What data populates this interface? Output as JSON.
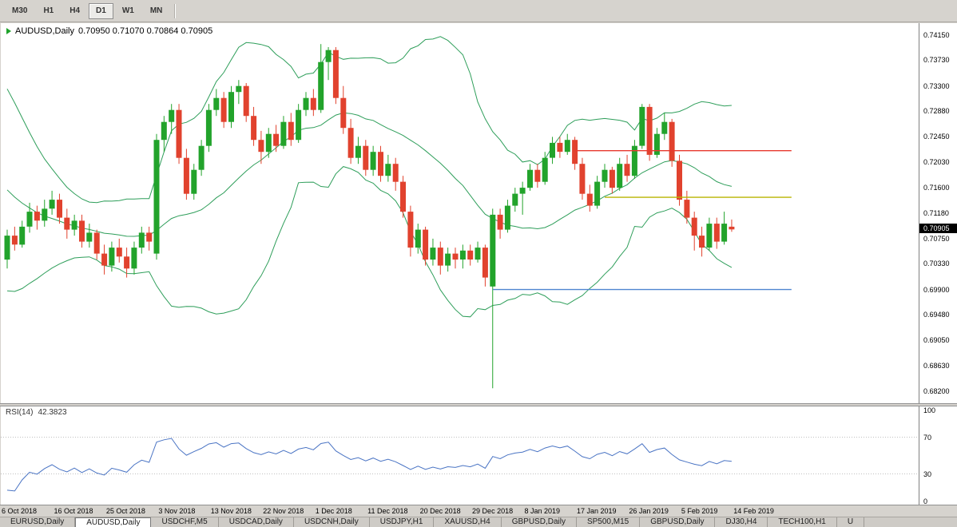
{
  "toolbar": {
    "timeframes": [
      {
        "label": "M30",
        "active": false
      },
      {
        "label": "H1",
        "active": false
      },
      {
        "label": "H4",
        "active": false
      },
      {
        "label": "D1",
        "active": true
      },
      {
        "label": "W1",
        "active": false
      },
      {
        "label": "MN",
        "active": false
      }
    ]
  },
  "chart": {
    "symbol_title": "AUDUSD,Daily",
    "ohlc_text": "0.70950 0.71070 0.70864 0.70905",
    "price_badge": "0.70905",
    "price_ticks": [
      "0.74150",
      "0.73730",
      "0.73300",
      "0.72880",
      "0.72450",
      "0.72030",
      "0.71600",
      "0.71180",
      "0.70750",
      "0.70330",
      "0.69900",
      "0.69480",
      "0.69050",
      "0.68630",
      "0.68200"
    ]
  },
  "rsi": {
    "label": "RSI(14)",
    "value": "42.3823",
    "ticks": [
      "100",
      "70",
      "30",
      "0"
    ]
  },
  "time_axis": {
    "labels": [
      "6 Oct 2018",
      "16 Oct 2018",
      "25 Oct 2018",
      "3 Nov 2018",
      "13 Nov 2018",
      "22 Nov 2018",
      "1 Dec 2018",
      "11 Dec 2018",
      "20 Dec 2018",
      "29 Dec 2018",
      "8 Jan 2019",
      "17 Jan 2019",
      "26 Jan 2019",
      "5 Feb 2019",
      "14 Feb 2019"
    ]
  },
  "tabs": [
    {
      "label": "EURUSD,Daily",
      "active": false
    },
    {
      "label": "AUDUSD,Daily",
      "active": true
    },
    {
      "label": "USDCHF,M5",
      "active": false
    },
    {
      "label": "USDCAD,Daily",
      "active": false
    },
    {
      "label": "USDCNH,Daily",
      "active": false
    },
    {
      "label": "USDJPY,H1",
      "active": false
    },
    {
      "label": "XAUUSD,H4",
      "active": false
    },
    {
      "label": "GBPUSD,Daily",
      "active": false
    },
    {
      "label": "SP500,M15",
      "active": false
    },
    {
      "label": "GBPUSD,Daily",
      "active": false
    },
    {
      "label": "DJ30,H4",
      "active": false
    },
    {
      "label": "TECH100,H1",
      "active": false
    },
    {
      "label": "U",
      "active": false
    }
  ],
  "chart_data": {
    "type": "candlestick",
    "title": "AUDUSD,Daily",
    "y_range": [
      0.682,
      0.7415
    ],
    "candles": [
      [
        0.704,
        0.709,
        0.7025,
        0.708
      ],
      [
        0.708,
        0.7095,
        0.7055,
        0.7065
      ],
      [
        0.7065,
        0.7105,
        0.706,
        0.7095
      ],
      [
        0.7095,
        0.7135,
        0.7085,
        0.712
      ],
      [
        0.712,
        0.713,
        0.709,
        0.7105
      ],
      [
        0.7105,
        0.714,
        0.7095,
        0.7125
      ],
      [
        0.7125,
        0.7155,
        0.7115,
        0.714
      ],
      [
        0.714,
        0.715,
        0.71,
        0.711
      ],
      [
        0.711,
        0.7125,
        0.7075,
        0.709
      ],
      [
        0.709,
        0.7115,
        0.708,
        0.7105
      ],
      [
        0.7105,
        0.7115,
        0.706,
        0.707
      ],
      [
        0.707,
        0.71,
        0.706,
        0.7085
      ],
      [
        0.7085,
        0.709,
        0.704,
        0.705
      ],
      [
        0.705,
        0.7065,
        0.7015,
        0.703
      ],
      [
        0.703,
        0.707,
        0.702,
        0.706
      ],
      [
        0.706,
        0.7075,
        0.7035,
        0.7045
      ],
      [
        0.7045,
        0.706,
        0.701,
        0.7025
      ],
      [
        0.7025,
        0.707,
        0.7015,
        0.706
      ],
      [
        0.706,
        0.7095,
        0.705,
        0.7085
      ],
      [
        0.7085,
        0.7095,
        0.7055,
        0.707
      ],
      [
        0.705,
        0.725,
        0.704,
        0.724
      ],
      [
        0.724,
        0.728,
        0.722,
        0.727
      ],
      [
        0.727,
        0.73,
        0.725,
        0.729
      ],
      [
        0.729,
        0.73,
        0.72,
        0.721
      ],
      [
        0.721,
        0.7225,
        0.714,
        0.715
      ],
      [
        0.715,
        0.72,
        0.714,
        0.719
      ],
      [
        0.719,
        0.724,
        0.718,
        0.723
      ],
      [
        0.723,
        0.73,
        0.722,
        0.729
      ],
      [
        0.729,
        0.7325,
        0.728,
        0.731
      ],
      [
        0.731,
        0.732,
        0.726,
        0.727
      ],
      [
        0.727,
        0.733,
        0.726,
        0.732
      ],
      [
        0.732,
        0.734,
        0.73,
        0.733
      ],
      [
        0.733,
        0.7335,
        0.727,
        0.728
      ],
      [
        0.728,
        0.7295,
        0.723,
        0.724
      ],
      [
        0.724,
        0.7255,
        0.72,
        0.722
      ],
      [
        0.722,
        0.726,
        0.721,
        0.725
      ],
      [
        0.725,
        0.7265,
        0.722,
        0.723
      ],
      [
        0.723,
        0.728,
        0.7225,
        0.727
      ],
      [
        0.727,
        0.7285,
        0.723,
        0.724
      ],
      [
        0.724,
        0.73,
        0.7235,
        0.729
      ],
      [
        0.729,
        0.732,
        0.728,
        0.731
      ],
      [
        0.731,
        0.7325,
        0.728,
        0.729
      ],
      [
        0.729,
        0.74,
        0.7285,
        0.737
      ],
      [
        0.737,
        0.7395,
        0.734,
        0.739
      ],
      [
        0.739,
        0.7395,
        0.73,
        0.731
      ],
      [
        0.731,
        0.733,
        0.725,
        0.726
      ],
      [
        0.726,
        0.7275,
        0.72,
        0.721
      ],
      [
        0.721,
        0.7245,
        0.72,
        0.723
      ],
      [
        0.723,
        0.724,
        0.718,
        0.719
      ],
      [
        0.719,
        0.723,
        0.718,
        0.722
      ],
      [
        0.722,
        0.723,
        0.717,
        0.718
      ],
      [
        0.718,
        0.7215,
        0.717,
        0.72
      ],
      [
        0.72,
        0.721,
        0.7155,
        0.717
      ],
      [
        0.717,
        0.718,
        0.711,
        0.712
      ],
      [
        0.712,
        0.713,
        0.7045,
        0.706
      ],
      [
        0.706,
        0.71,
        0.705,
        0.709
      ],
      [
        0.709,
        0.7095,
        0.703,
        0.704
      ],
      [
        0.704,
        0.7075,
        0.703,
        0.706
      ],
      [
        0.706,
        0.707,
        0.7015,
        0.703
      ],
      [
        0.703,
        0.706,
        0.702,
        0.705
      ],
      [
        0.705,
        0.706,
        0.7025,
        0.704
      ],
      [
        0.704,
        0.7065,
        0.7025,
        0.7055
      ],
      [
        0.7055,
        0.7065,
        0.703,
        0.704
      ],
      [
        0.704,
        0.707,
        0.7035,
        0.706
      ],
      [
        0.706,
        0.7065,
        0.6995,
        0.701
      ],
      [
        0.6995,
        0.7125,
        0.6825,
        0.7115
      ],
      [
        0.7115,
        0.7125,
        0.7075,
        0.709
      ],
      [
        0.709,
        0.714,
        0.7085,
        0.713
      ],
      [
        0.713,
        0.716,
        0.712,
        0.715
      ],
      [
        0.715,
        0.717,
        0.7115,
        0.716
      ],
      [
        0.716,
        0.72,
        0.7155,
        0.719
      ],
      [
        0.719,
        0.72,
        0.716,
        0.717
      ],
      [
        0.717,
        0.722,
        0.7165,
        0.721
      ],
      [
        0.721,
        0.7245,
        0.72,
        0.7235
      ],
      [
        0.7235,
        0.7245,
        0.721,
        0.722
      ],
      [
        0.722,
        0.725,
        0.7215,
        0.724
      ],
      [
        0.724,
        0.7245,
        0.719,
        0.72
      ],
      [
        0.72,
        0.721,
        0.714,
        0.715
      ],
      [
        0.715,
        0.7165,
        0.712,
        0.713
      ],
      [
        0.713,
        0.718,
        0.7125,
        0.717
      ],
      [
        0.717,
        0.72,
        0.716,
        0.719
      ],
      [
        0.719,
        0.7195,
        0.715,
        0.716
      ],
      [
        0.716,
        0.721,
        0.7155,
        0.72
      ],
      [
        0.72,
        0.7215,
        0.717,
        0.718
      ],
      [
        0.718,
        0.724,
        0.7175,
        0.723
      ],
      [
        0.723,
        0.73,
        0.7225,
        0.7295
      ],
      [
        0.7295,
        0.73,
        0.7205,
        0.7215
      ],
      [
        0.7215,
        0.726,
        0.721,
        0.725
      ],
      [
        0.725,
        0.7285,
        0.724,
        0.727
      ],
      [
        0.727,
        0.7275,
        0.7195,
        0.7205
      ],
      [
        0.7205,
        0.7215,
        0.713,
        0.714
      ],
      [
        0.714,
        0.7155,
        0.71,
        0.711
      ],
      [
        0.711,
        0.712,
        0.7055,
        0.708
      ],
      [
        0.708,
        0.7095,
        0.7045,
        0.706
      ],
      [
        0.706,
        0.711,
        0.7055,
        0.71
      ],
      [
        0.71,
        0.711,
        0.7058,
        0.707
      ],
      [
        0.707,
        0.712,
        0.7065,
        0.71
      ],
      [
        0.7095,
        0.7107,
        0.70864,
        0.70905
      ]
    ],
    "indicators": {
      "bollinger": {
        "period": 20,
        "deviation": 2,
        "color": "#2e9e5a",
        "warmup_closes": [
          0.731,
          0.7295,
          0.728,
          0.726,
          0.724,
          0.722,
          0.72,
          0.7185,
          0.7165,
          0.715,
          0.713,
          0.711,
          0.7095,
          0.7085,
          0.7075,
          0.707,
          0.7065,
          0.706,
          0.7055
        ]
      },
      "rsi": {
        "period": 14,
        "value": 42.3823,
        "color": "#4a74c4",
        "levels": [
          70,
          30
        ],
        "range": [
          0,
          100
        ]
      }
    },
    "hlines": [
      {
        "name": "resistance-line-red",
        "price": 0.7222,
        "color": "#e8392e",
        "start_index": 76,
        "end_index": 105
      },
      {
        "name": "level-line-yellow",
        "price": 0.7144,
        "color": "#b9b400",
        "start_index": 80,
        "end_index": 105
      },
      {
        "name": "support-line-blue",
        "price": 0.699,
        "color": "#4f86d0",
        "start_index": 65,
        "end_index": 105
      }
    ],
    "colors": {
      "bull": "#22a32b",
      "bear": "#e1422e",
      "background": "#ffffff"
    }
  }
}
